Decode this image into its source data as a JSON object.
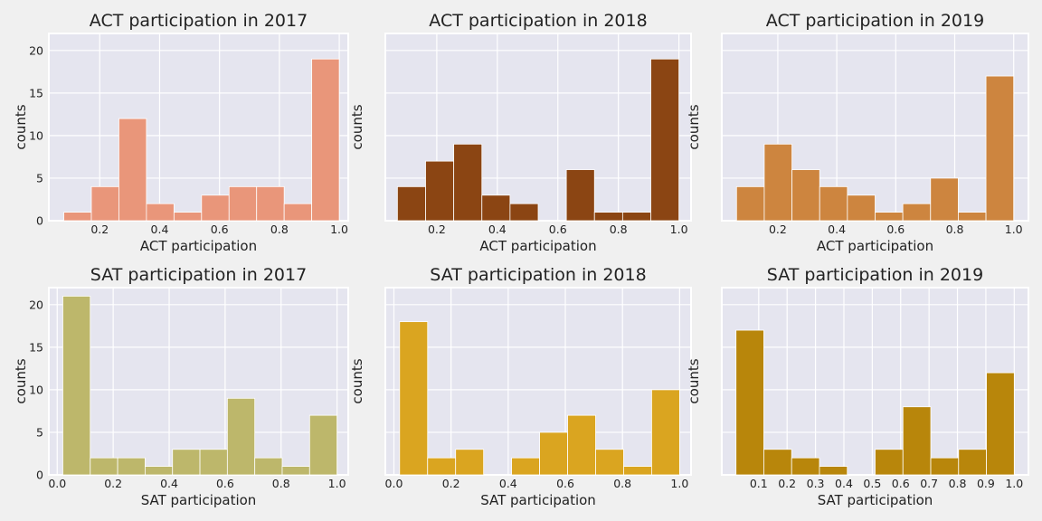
{
  "chart_data": [
    {
      "type": "bar",
      "title": "ACT participation in 2017",
      "xlabel": "ACT participation",
      "ylabel": "counts",
      "color": "#E9967A",
      "xlim": [
        0.03,
        1.03
      ],
      "ylim": [
        0,
        22
      ],
      "xticks": [
        0.2,
        0.4,
        0.6,
        0.8,
        1.0
      ],
      "xtick_labels": [
        "0.2",
        "0.4",
        "0.6",
        "0.8",
        "1.0"
      ],
      "yticks": [
        0,
        5,
        10,
        15,
        20
      ],
      "ytick_labels": [
        "0",
        "5",
        "10",
        "15",
        "20"
      ],
      "bin_edges": [
        0.08,
        0.172,
        0.264,
        0.356,
        0.448,
        0.54,
        0.632,
        0.724,
        0.816,
        0.908,
        1.0
      ],
      "values": [
        1,
        4,
        12,
        2,
        1,
        3,
        4,
        4,
        2,
        19
      ],
      "grid": true
    },
    {
      "type": "bar",
      "title": "ACT participation in 2018",
      "xlabel": "ACT participation",
      "ylabel": "counts",
      "color": "#8B4513",
      "xlim": [
        0.03,
        1.04
      ],
      "ylim": [
        0,
        22
      ],
      "xticks": [
        0.2,
        0.4,
        0.6,
        0.8,
        1.0
      ],
      "xtick_labels": [
        "0.2",
        "0.4",
        "0.6",
        "0.8",
        "1.0"
      ],
      "yticks": [
        0,
        5,
        10,
        15,
        20
      ],
      "ytick_labels": [],
      "bin_edges": [
        0.07,
        0.163,
        0.256,
        0.349,
        0.442,
        0.535,
        0.628,
        0.721,
        0.814,
        0.907,
        1.0
      ],
      "values": [
        4,
        7,
        9,
        3,
        2,
        0,
        6,
        1,
        1,
        19
      ],
      "grid": true
    },
    {
      "type": "bar",
      "title": "ACT participation in 2019",
      "xlabel": "ACT participation",
      "ylabel": "counts",
      "color": "#CD853F",
      "xlim": [
        0.01,
        1.05
      ],
      "ylim": [
        0,
        22
      ],
      "xticks": [
        0.2,
        0.4,
        0.6,
        0.8,
        1.0
      ],
      "xtick_labels": [
        "0.2",
        "0.4",
        "0.6",
        "0.8",
        "1.0"
      ],
      "yticks": [
        0,
        5,
        10,
        15,
        20
      ],
      "ytick_labels": [],
      "bin_edges": [
        0.06,
        0.154,
        0.248,
        0.342,
        0.436,
        0.53,
        0.624,
        0.718,
        0.812,
        0.906,
        1.0
      ],
      "values": [
        4,
        9,
        6,
        4,
        3,
        1,
        2,
        5,
        1,
        17
      ],
      "grid": true
    },
    {
      "type": "bar",
      "title": "SAT participation in 2017",
      "xlabel": "SAT participation",
      "ylabel": "counts",
      "color": "#BDB76B",
      "xlim": [
        -0.03,
        1.04
      ],
      "ylim": [
        0,
        22
      ],
      "xticks": [
        0.0,
        0.2,
        0.4,
        0.6,
        0.8,
        1.0
      ],
      "xtick_labels": [
        "0.0",
        "0.2",
        "0.4",
        "0.6",
        "0.8",
        "1.0"
      ],
      "yticks": [
        0,
        5,
        10,
        15,
        20
      ],
      "ytick_labels": [
        "0",
        "5",
        "10",
        "15",
        "20"
      ],
      "bin_edges": [
        0.02,
        0.118,
        0.216,
        0.314,
        0.412,
        0.51,
        0.608,
        0.706,
        0.804,
        0.902,
        1.0
      ],
      "values": [
        21,
        2,
        2,
        1,
        3,
        3,
        9,
        2,
        1,
        7
      ],
      "grid": true
    },
    {
      "type": "bar",
      "title": "SAT participation in 2018",
      "xlabel": "SAT participation",
      "ylabel": "counts",
      "color": "#DAA520",
      "xlim": [
        -0.03,
        1.04
      ],
      "ylim": [
        0,
        22
      ],
      "xticks": [
        0.0,
        0.2,
        0.4,
        0.6,
        0.8,
        1.0
      ],
      "xtick_labels": [
        "0.0",
        "0.2",
        "0.4",
        "0.6",
        "0.8",
        "1.0"
      ],
      "yticks": [
        0,
        5,
        10,
        15,
        20
      ],
      "ytick_labels": [],
      "bin_edges": [
        0.02,
        0.118,
        0.216,
        0.314,
        0.412,
        0.51,
        0.608,
        0.706,
        0.804,
        0.902,
        1.0
      ],
      "values": [
        18,
        2,
        3,
        0,
        2,
        5,
        7,
        3,
        1,
        10
      ],
      "grid": true
    },
    {
      "type": "bar",
      "title": "SAT participation in 2019",
      "xlabel": "SAT participation",
      "ylabel": "counts",
      "color": "#B8860B",
      "xlim": [
        -0.03,
        1.05
      ],
      "ylim": [
        0,
        22
      ],
      "xticks": [
        0.1,
        0.2,
        0.3,
        0.4,
        0.5,
        0.6,
        0.7,
        0.8,
        0.9,
        1.0
      ],
      "xtick_labels": [
        "0.1",
        "0.2",
        "0.3",
        "0.4",
        "0.5",
        "0.6",
        "0.7",
        "0.8",
        "0.9",
        "1.0"
      ],
      "yticks": [
        0,
        5,
        10,
        15,
        20
      ],
      "ytick_labels": [],
      "bin_edges": [
        0.02,
        0.118,
        0.216,
        0.314,
        0.412,
        0.51,
        0.608,
        0.706,
        0.804,
        0.902,
        1.0
      ],
      "values": [
        17,
        3,
        2,
        1,
        0,
        3,
        8,
        2,
        3,
        12
      ],
      "grid": true
    }
  ]
}
